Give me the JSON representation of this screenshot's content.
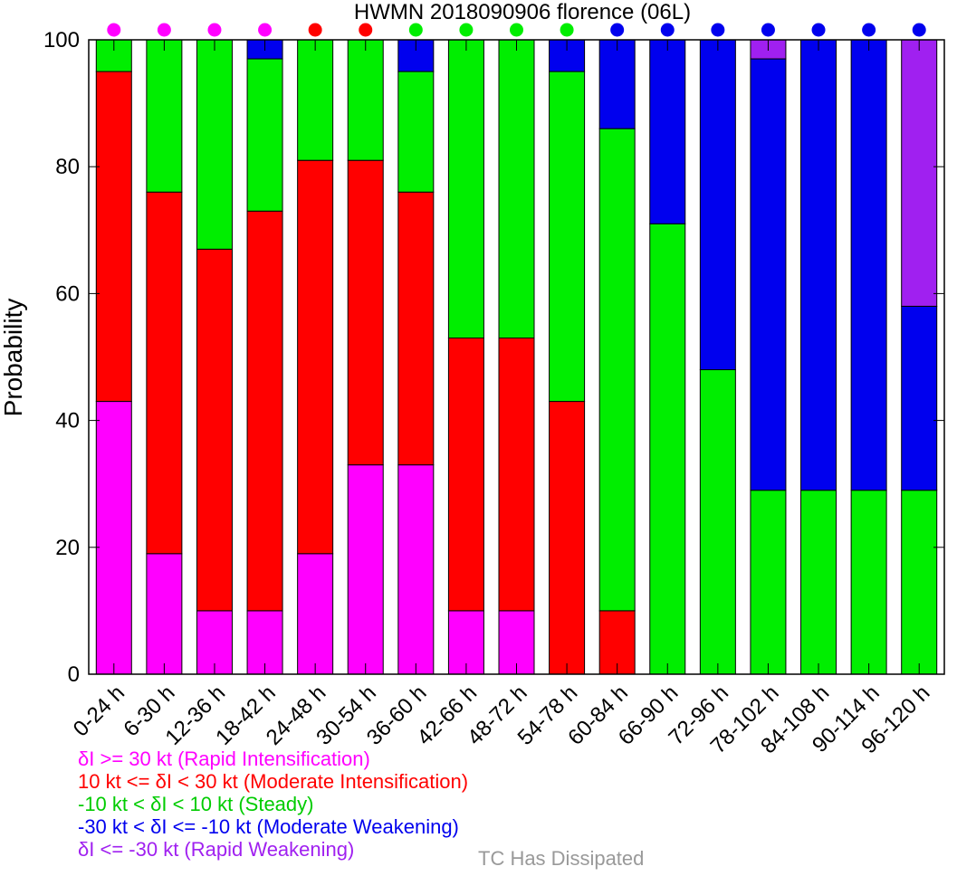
{
  "chart_data": {
    "type": "bar",
    "stacked": true,
    "title": "HWMN 2018090906 florence (06L)",
    "xlabel": "",
    "ylabel": "Probability",
    "ylim": [
      0,
      100
    ],
    "yticks": [
      0,
      20,
      40,
      60,
      80,
      100
    ],
    "grid": false,
    "categories": [
      "0-24 h",
      "6-30 h",
      "12-36 h",
      "18-42 h",
      "24-48 h",
      "30-54 h",
      "36-60 h",
      "42-66 h",
      "48-72 h",
      "54-78 h",
      "60-84 h",
      "66-90 h",
      "72-96 h",
      "78-102 h",
      "84-108 h",
      "90-114 h",
      "96-120 h"
    ],
    "series": [
      {
        "name": "δI >= 30 kt (Rapid Intensification)",
        "color": "#ff00ff",
        "values": [
          43,
          19,
          10,
          10,
          19,
          33,
          33,
          10,
          10,
          0,
          0,
          0,
          0,
          0,
          0,
          0,
          0
        ]
      },
      {
        "name": "10 kt <= δI < 30 kt (Moderate Intensification)",
        "color": "#ff0000",
        "values": [
          52,
          57,
          57,
          63,
          62,
          48,
          43,
          43,
          43,
          43,
          10,
          0,
          0,
          0,
          0,
          0,
          0
        ]
      },
      {
        "name": "-10 kt < δI < 10 kt (Steady)",
        "color": "#00ee00",
        "values": [
          5,
          24,
          33,
          24,
          19,
          19,
          19,
          47,
          47,
          52,
          76,
          71,
          48,
          29,
          29,
          29,
          29
        ]
      },
      {
        "name": "-30 kt < δI <= -10 kt (Moderate Weakening)",
        "color": "#0000ee",
        "values": [
          0,
          0,
          0,
          3,
          0,
          0,
          5,
          0,
          0,
          5,
          14,
          29,
          52,
          68,
          71,
          71,
          29
        ]
      },
      {
        "name": "δI <= -30 kt (Rapid Weakening)",
        "color": "#a020f0",
        "values": [
          0,
          0,
          0,
          0,
          0,
          0,
          0,
          0,
          0,
          0,
          0,
          0,
          0,
          3,
          0,
          0,
          42
        ]
      }
    ],
    "top_markers": [
      "#ff00ff",
      "#ff00ff",
      "#ff00ff",
      "#ff00ff",
      "#ff0000",
      "#ff0000",
      "#00ee00",
      "#00ee00",
      "#00ee00",
      "#00ee00",
      "#0000ee",
      "#0000ee",
      "#0000ee",
      "#0000ee",
      "#0000ee",
      "#0000ee",
      "#0000ee"
    ]
  },
  "legend": {
    "items": [
      {
        "text": "δI >= 30 kt (Rapid Intensification)",
        "color": "#ff00ff"
      },
      {
        "text": "10 kt <= δI < 30 kt (Moderate Intensification)",
        "color": "#ff0000"
      },
      {
        "text": "-10 kt < δI < 10 kt (Steady)",
        "color": "#00cc00"
      },
      {
        "text": "-30 kt < δI <= -10 kt (Moderate Weakening)",
        "color": "#0000ee"
      },
      {
        "text": "δI <= -30 kt (Rapid Weakening)",
        "color": "#a020f0"
      }
    ],
    "dissipated": "TC Has Dissipated",
    "dissipated_color": "#999999"
  }
}
